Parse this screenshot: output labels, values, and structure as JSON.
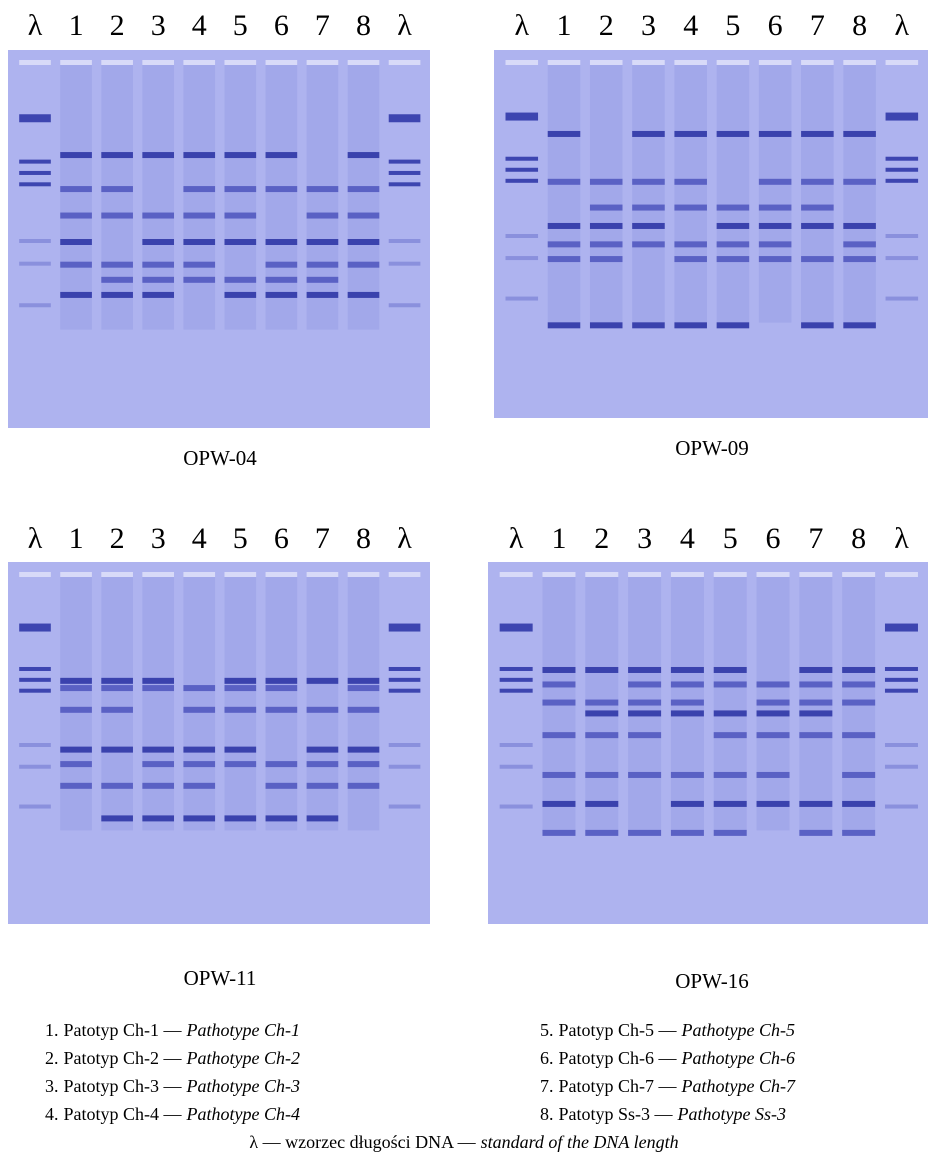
{
  "panels": [
    {
      "lanes": [
        "λ",
        "1",
        "2",
        "3",
        "4",
        "5",
        "6",
        "7",
        "8",
        "λ"
      ],
      "caption": "OPW-04"
    },
    {
      "lanes": [
        "λ",
        "1",
        "2",
        "3",
        "4",
        "5",
        "6",
        "7",
        "8",
        "λ"
      ],
      "caption": "OPW-09"
    },
    {
      "lanes": [
        "λ",
        "1",
        "2",
        "3",
        "4",
        "5",
        "6",
        "7",
        "8",
        "λ"
      ],
      "caption": "OPW-11"
    },
    {
      "lanes": [
        "λ",
        "1",
        "2",
        "3",
        "4",
        "5",
        "6",
        "7",
        "8",
        "λ"
      ],
      "caption": "OPW-16"
    }
  ],
  "legend": {
    "items": [
      {
        "number": "1.",
        "pl": "Patotyp Ch-1 —",
        "en": "Pathotype Ch-1"
      },
      {
        "number": "2.",
        "pl": "Patotyp Ch-2 —",
        "en": "Pathotype Ch-2"
      },
      {
        "number": "3.",
        "pl": "Patotyp Ch-3 —",
        "en": "Pathotype Ch-3"
      },
      {
        "number": "4.",
        "pl": "Patotyp Ch-4 —",
        "en": "Pathotype Ch-4"
      },
      {
        "number": "5.",
        "pl": "Patotyp Ch-5 —",
        "en": "Pathotype Ch-5"
      },
      {
        "number": "6.",
        "pl": "Patotyp Ch-6 —",
        "en": "Pathotype Ch-6"
      },
      {
        "number": "7.",
        "pl": "Patotyp Ch-7 —",
        "en": "Pathotype Ch-7"
      },
      {
        "number": "8.",
        "pl": "Patotyp Ss-3 —",
        "en": "Pathotype Ss-3"
      }
    ],
    "footer": {
      "pl": "λ — wzorzec długości DNA —",
      "en": "standard of the DNA length"
    }
  }
}
